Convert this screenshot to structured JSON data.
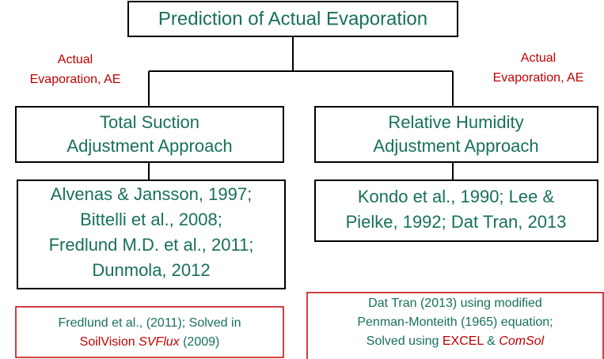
{
  "title": "Prediction of Actual Evaporation",
  "edge_labels": [
    [
      "Actual",
      "Evaporation, AE"
    ],
    [
      "Actual",
      "Evaporation, AE"
    ]
  ],
  "approaches": [
    [
      "Total Suction",
      "Adjustment Approach"
    ],
    [
      "Relative Humidity",
      "Adjustment Approach"
    ]
  ],
  "references": [
    [
      "Alvenas & Jansson, 1997;",
      "Bittelli et al., 2008;",
      "Fredlund M.D. et al., 2011;",
      "Dunmola, 2012"
    ],
    [
      "Kondo et al., 1990; Lee &",
      "Pielke, 1992; Dat Tran, 2013"
    ]
  ],
  "notes": [
    {
      "line1": "Fredlund et al., (2011); Solved in",
      "line2": [
        "SoilVision",
        " SVFlux",
        " (2009)"
      ]
    },
    {
      "line1": "Dat Tran (2013) using modified",
      "line2": "Penman-Monteith (1965) equation;",
      "line3": [
        "Solved using ",
        "EXCEL",
        " & ",
        "ComSol"
      ]
    }
  ]
}
